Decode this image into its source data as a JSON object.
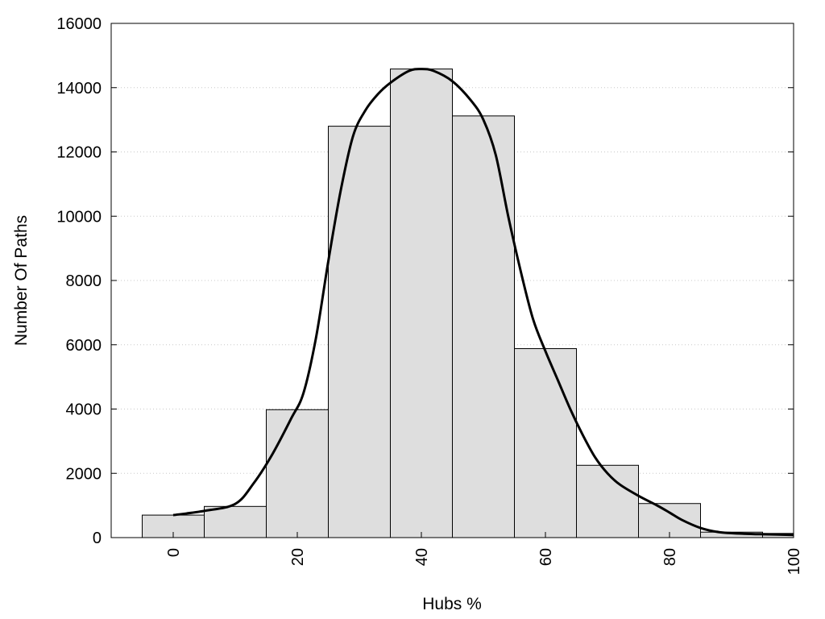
{
  "chart_data": {
    "type": "bar",
    "title": "",
    "xlabel": "Hubs %",
    "ylabel": "Number Of Paths",
    "xlim": [
      -10,
      100
    ],
    "ylim": [
      0,
      16000
    ],
    "x_ticks": [
      0,
      20,
      40,
      60,
      80,
      100
    ],
    "y_ticks": [
      0,
      2000,
      4000,
      6000,
      8000,
      10000,
      12000,
      14000,
      16000
    ],
    "grid": "horizontal dotted",
    "legend": "none",
    "bin_width": 10,
    "bins": [
      {
        "center": 0,
        "value": 700
      },
      {
        "center": 10,
        "value": 970
      },
      {
        "center": 20,
        "value": 3980
      },
      {
        "center": 30,
        "value": 12800
      },
      {
        "center": 40,
        "value": 14580
      },
      {
        "center": 50,
        "value": 13120
      },
      {
        "center": 60,
        "value": 5880
      },
      {
        "center": 70,
        "value": 2250
      },
      {
        "center": 80,
        "value": 1060
      },
      {
        "center": 90,
        "value": 170
      },
      {
        "center": 100,
        "value": 130
      }
    ],
    "smooth_curve": [
      [
        0,
        700
      ],
      [
        5,
        830
      ],
      [
        10,
        1050
      ],
      [
        13,
        1700
      ],
      [
        16,
        2600
      ],
      [
        19,
        3700
      ],
      [
        21,
        4500
      ],
      [
        23,
        6200
      ],
      [
        25,
        8600
      ],
      [
        27,
        10800
      ],
      [
        29,
        12500
      ],
      [
        31,
        13300
      ],
      [
        33,
        13800
      ],
      [
        35,
        14150
      ],
      [
        38,
        14520
      ],
      [
        40,
        14580
      ],
      [
        42,
        14520
      ],
      [
        45,
        14200
      ],
      [
        48,
        13600
      ],
      [
        50,
        13000
      ],
      [
        52,
        11900
      ],
      [
        54,
        10000
      ],
      [
        56,
        8300
      ],
      [
        58,
        6800
      ],
      [
        60,
        5800
      ],
      [
        62,
        4900
      ],
      [
        64,
        4000
      ],
      [
        66,
        3200
      ],
      [
        68,
        2500
      ],
      [
        70,
        2000
      ],
      [
        72,
        1650
      ],
      [
        75,
        1300
      ],
      [
        78,
        1000
      ],
      [
        80,
        780
      ],
      [
        82,
        550
      ],
      [
        85,
        300
      ],
      [
        88,
        170
      ],
      [
        92,
        120
      ],
      [
        96,
        100
      ],
      [
        100,
        80
      ]
    ],
    "colors": {
      "bar_fill": "#dedede",
      "bar_stroke": "#000000",
      "curve": "#000000",
      "grid": "#c8c8c8"
    }
  }
}
